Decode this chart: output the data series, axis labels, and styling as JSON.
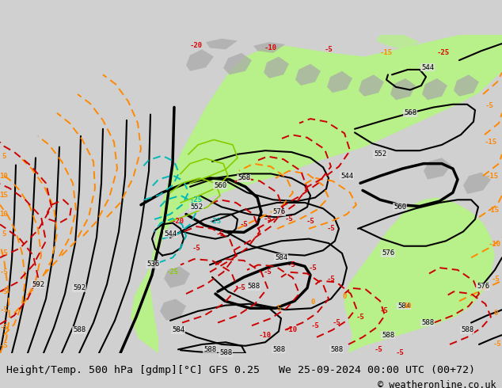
{
  "title_left": "Height/Temp. 500 hPa [gdmp][°C] GFS 0.25",
  "title_right": "We 25-09-2024 00:00 UTC (00+72)",
  "copyright": "© weatheronline.co.uk",
  "bg_color": "#d0d0d0",
  "map_bg": "#e0e0e0",
  "green_fill": "#b8f08a",
  "font_family": "monospace",
  "title_fontsize": 9.5,
  "copyright_fontsize": 8.5
}
